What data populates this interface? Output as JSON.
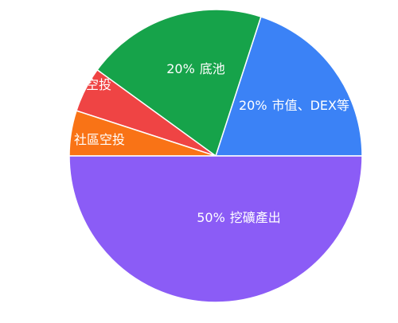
{
  "chart_data": {
    "type": "pie",
    "categories": [
      "市值、DEX等",
      "底池",
      "空投",
      "社區空投",
      "挖礦產出"
    ],
    "values": [
      20,
      20,
      5,
      5,
      50
    ],
    "value_labels": [
      "20%",
      "20%",
      null,
      null,
      "50%"
    ],
    "colors": [
      "#3b82f6",
      "#16a34a",
      "#ef4444",
      "#f97316",
      "#8b5cf6"
    ]
  }
}
